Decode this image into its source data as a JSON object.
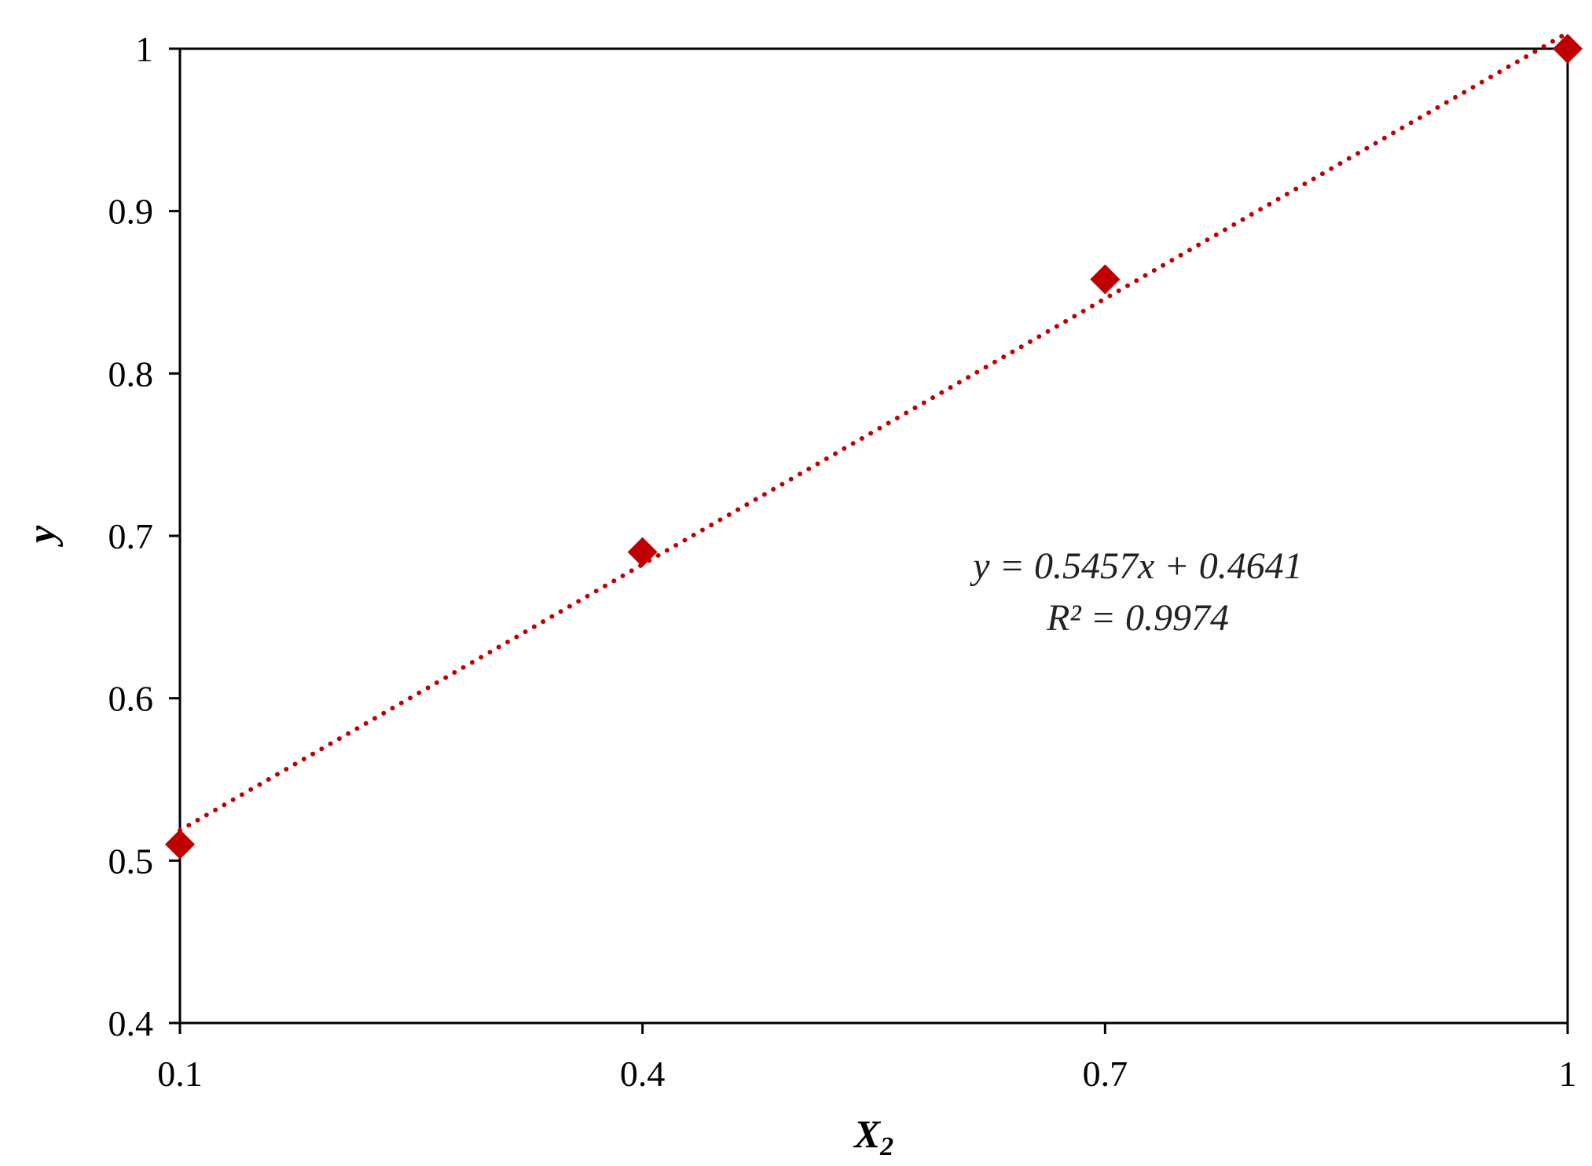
{
  "chart_data": {
    "type": "scatter",
    "x_axis": {
      "label_main": "X",
      "label_sub": "2",
      "min": 0.1,
      "max": 1,
      "ticks": [
        0.1,
        0.4,
        0.7,
        1
      ],
      "tick_labels": [
        "0.1",
        "0.4",
        "0.7",
        "1"
      ]
    },
    "y_axis": {
      "label": "y",
      "min": 0.4,
      "max": 1,
      "ticks": [
        0.4,
        0.5,
        0.6,
        0.7,
        0.8,
        0.9,
        1
      ],
      "tick_labels": [
        "0.4",
        "0.5",
        "0.6",
        "0.7",
        "0.8",
        "0.9",
        "1"
      ]
    },
    "grid": false,
    "series": [
      {
        "marker": "diamond",
        "color": "#c00000",
        "points": [
          {
            "x": 0.1,
            "y": 0.51
          },
          {
            "x": 0.4,
            "y": 0.69
          },
          {
            "x": 0.7,
            "y": 0.858
          },
          {
            "x": 1.0,
            "y": 1.0
          }
        ]
      }
    ],
    "trendline": {
      "type": "linear",
      "style": "dotted",
      "color": "#c00000",
      "slope": 0.5457,
      "intercept": 0.4641,
      "equation_label": "y = 0.5457x + 0.4641",
      "r2_label": "R² = 0.9974"
    }
  }
}
